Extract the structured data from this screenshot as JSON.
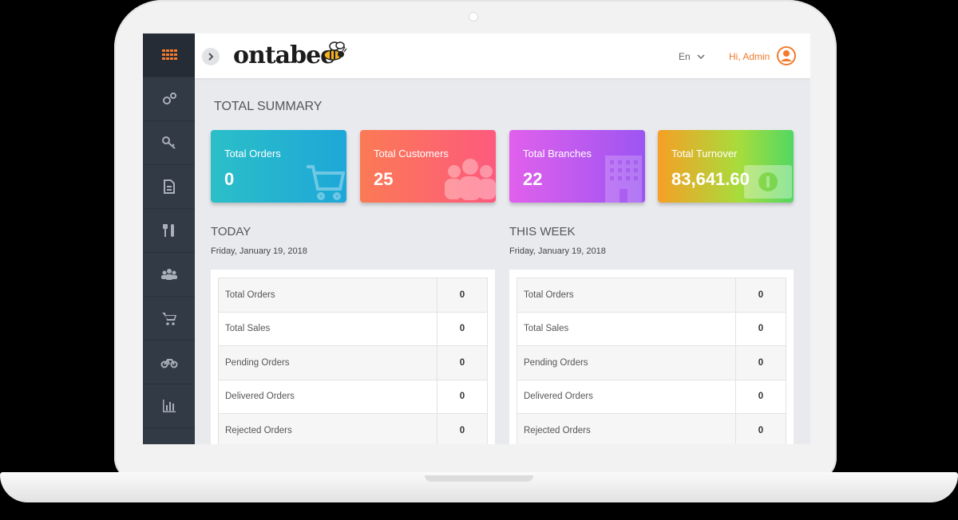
{
  "header": {
    "logo_text": "ontabee",
    "language": "En",
    "greeting": "Hi, Admin"
  },
  "sidebar": {
    "items": [
      {
        "icon": "grid-icon",
        "active": true
      },
      {
        "icon": "settings-icon"
      },
      {
        "icon": "key-icon"
      },
      {
        "icon": "document-icon"
      },
      {
        "icon": "restaurant-icon"
      },
      {
        "icon": "users-icon"
      },
      {
        "icon": "cart-icon"
      },
      {
        "icon": "bike-icon"
      },
      {
        "icon": "bar-chart-icon"
      }
    ]
  },
  "summary": {
    "title": "TOTAL SUMMARY",
    "cards": [
      {
        "label": "Total Orders",
        "value": "0"
      },
      {
        "label": "Total Customers",
        "value": "25"
      },
      {
        "label": "Total Branches",
        "value": "22"
      },
      {
        "label": "Total Turnover",
        "value": "83,641.60"
      }
    ]
  },
  "today": {
    "title": "TODAY",
    "date": "Friday, January 19, 2018",
    "rows": [
      {
        "label": "Total Orders",
        "value": "0"
      },
      {
        "label": "Total Sales",
        "value": "0"
      },
      {
        "label": "Pending Orders",
        "value": "0"
      },
      {
        "label": "Delivered Orders",
        "value": "0"
      },
      {
        "label": "Rejected Orders",
        "value": "0"
      }
    ]
  },
  "week": {
    "title": "THIS WEEK",
    "date": "Friday, January 19, 2018",
    "rows": [
      {
        "label": "Total Orders",
        "value": "0"
      },
      {
        "label": "Total Sales",
        "value": "0"
      },
      {
        "label": "Pending Orders",
        "value": "0"
      },
      {
        "label": "Delivered Orders",
        "value": "0"
      },
      {
        "label": "Rejected Orders",
        "value": "0"
      }
    ]
  },
  "colors": {
    "accent": "#f37b2b",
    "sidebar": "#323a45"
  }
}
